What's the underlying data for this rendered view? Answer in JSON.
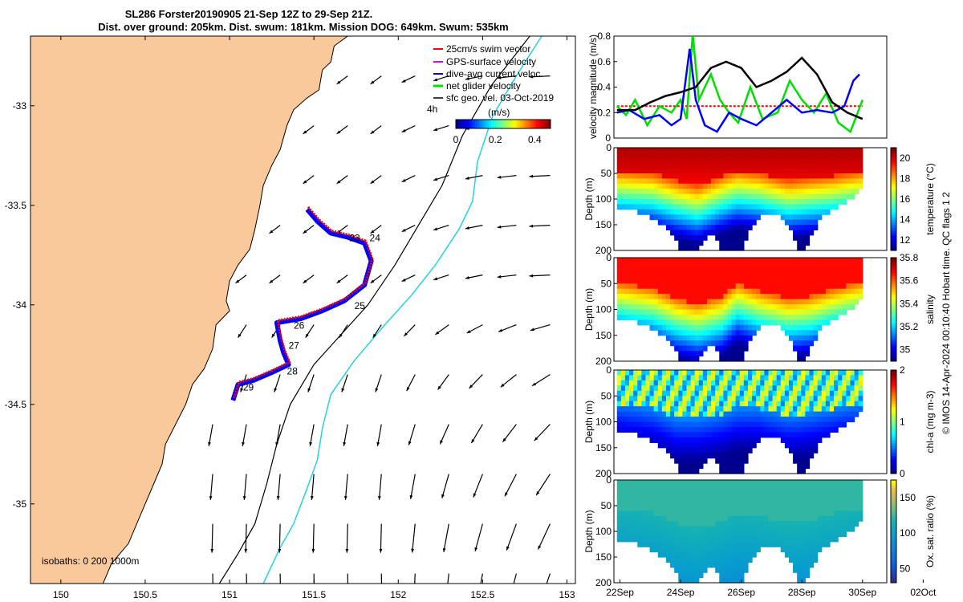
{
  "header": {
    "title_line1": "SL286 Forster20190905 21-Sep 12Z to 29-Sep 21Z.",
    "title_line2": "Dist. over ground: 205km. Dist. swum: 181km. Mission DOG: 649km. Swum: 535km"
  },
  "colors": {
    "land": "#f9c99c",
    "isobath_200": "#000000",
    "isobath_1000": "#22d3e0",
    "track_red": "#ff0000",
    "track_blue": "#0000ff",
    "green": "#00e000",
    "magenta": "#e000e0",
    "axis": "#000000"
  },
  "footer_note": "© IMOS 14-Apr-2024 00:10:40 Hobart time. QC flags 1  2",
  "chart_data": [
    {
      "type": "map",
      "x_ticks": [
        "150",
        "150.5",
        "151",
        "151.5",
        "152",
        "152.5",
        "153"
      ],
      "x_tick_values": [
        150,
        150.5,
        151,
        151.5,
        152,
        152.5,
        153
      ],
      "y_ticks": [
        "-33",
        "-33.5",
        "-34",
        "-34.5",
        "-35"
      ],
      "y_tick_values": [
        -33,
        -33.5,
        -34,
        -34.5,
        -35
      ],
      "xlim": [
        149.82,
        153.05
      ],
      "ylim": [
        -35.4,
        -32.65
      ],
      "legend": [
        {
          "label": "25cm/s swim vector",
          "color": "#ff0000"
        },
        {
          "label": "GPS-surface velocity",
          "color": "#e000e0"
        },
        {
          "label": "dive-avg current veloc.",
          "color": "#0000ff"
        },
        {
          "label": "net glider velocity",
          "color": "#00e000"
        },
        {
          "label": "sfc geo. vel. 03-Oct-2019",
          "color": "#000000"
        }
      ],
      "legend_extra": "4h",
      "colorbar": {
        "label": "(m/s)",
        "ticks": [
          "0",
          "0.2",
          "0.4"
        ],
        "tick_values": [
          0,
          0.2,
          0.4
        ],
        "range": [
          0,
          0.48
        ]
      },
      "isobath_note": "isobaths: 0   200  1000m",
      "date_labels": [
        {
          "label": "23",
          "lon": 151.71,
          "lat": -33.68
        },
        {
          "label": "24",
          "lon": 151.83,
          "lat": -33.68
        },
        {
          "label": "25",
          "lon": 151.74,
          "lat": -34.02
        },
        {
          "label": "26",
          "lon": 151.38,
          "lat": -34.12
        },
        {
          "label": "27",
          "lon": 151.35,
          "lat": -34.22
        },
        {
          "label": "28",
          "lon": 151.34,
          "lat": -34.35
        },
        {
          "label": "29",
          "lon": 151.08,
          "lat": -34.43
        }
      ],
      "track": [
        [
          151.46,
          -33.52
        ],
        [
          151.52,
          -33.58
        ],
        [
          151.6,
          -33.64
        ],
        [
          151.7,
          -33.66
        ],
        [
          151.8,
          -33.69
        ],
        [
          151.84,
          -33.78
        ],
        [
          151.8,
          -33.9
        ],
        [
          151.68,
          -33.98
        ],
        [
          151.55,
          -34.03
        ],
        [
          151.42,
          -34.07
        ],
        [
          151.28,
          -34.09
        ],
        [
          151.3,
          -34.18
        ],
        [
          151.32,
          -34.24
        ],
        [
          151.35,
          -34.3
        ],
        [
          151.25,
          -34.34
        ],
        [
          151.14,
          -34.38
        ],
        [
          151.05,
          -34.4
        ],
        [
          151.02,
          -34.48
        ]
      ],
      "coast": [
        [
          151.7,
          -32.65
        ],
        [
          151.62,
          -32.7
        ],
        [
          151.6,
          -32.78
        ],
        [
          151.55,
          -32.82
        ],
        [
          151.53,
          -32.92
        ],
        [
          151.46,
          -32.96
        ],
        [
          151.38,
          -33.02
        ],
        [
          151.34,
          -33.1
        ],
        [
          151.3,
          -33.22
        ],
        [
          151.25,
          -33.3
        ],
        [
          151.2,
          -33.4
        ],
        [
          151.18,
          -33.5
        ],
        [
          151.15,
          -33.62
        ],
        [
          151.12,
          -33.72
        ],
        [
          151.05,
          -33.8
        ],
        [
          151.0,
          -33.88
        ],
        [
          150.98,
          -33.98
        ],
        [
          151.0,
          -34.03
        ],
        [
          150.92,
          -34.1
        ],
        [
          150.9,
          -34.22
        ],
        [
          150.85,
          -34.32
        ],
        [
          150.78,
          -34.4
        ],
        [
          150.74,
          -34.5
        ],
        [
          150.68,
          -34.6
        ],
        [
          150.62,
          -34.7
        ],
        [
          150.6,
          -34.8
        ],
        [
          150.55,
          -34.9
        ],
        [
          150.5,
          -35.0
        ],
        [
          150.45,
          -35.1
        ],
        [
          150.4,
          -35.2
        ],
        [
          150.3,
          -35.3
        ],
        [
          150.25,
          -35.4
        ]
      ],
      "isobath200": [
        [
          152.78,
          -32.65
        ],
        [
          152.55,
          -32.9
        ],
        [
          152.38,
          -33.15
        ],
        [
          152.26,
          -33.4
        ],
        [
          152.12,
          -33.6
        ],
        [
          151.98,
          -33.8
        ],
        [
          151.82,
          -34.0
        ],
        [
          151.66,
          -34.15
        ],
        [
          151.5,
          -34.3
        ],
        [
          151.36,
          -34.5
        ],
        [
          151.28,
          -34.7
        ],
        [
          151.22,
          -34.9
        ],
        [
          151.15,
          -35.1
        ],
        [
          151.05,
          -35.25
        ],
        [
          150.94,
          -35.4
        ]
      ],
      "isobath1000": [
        [
          152.85,
          -32.65
        ],
        [
          152.7,
          -32.85
        ],
        [
          152.56,
          -33.05
        ],
        [
          152.47,
          -33.28
        ],
        [
          152.44,
          -33.48
        ],
        [
          152.36,
          -33.62
        ],
        [
          152.22,
          -33.8
        ],
        [
          152.08,
          -33.95
        ],
        [
          151.92,
          -34.1
        ],
        [
          151.74,
          -34.28
        ],
        [
          151.6,
          -34.45
        ],
        [
          151.55,
          -34.62
        ],
        [
          151.52,
          -34.78
        ],
        [
          151.46,
          -34.92
        ],
        [
          151.38,
          -35.1
        ],
        [
          151.3,
          -35.22
        ],
        [
          151.2,
          -35.4
        ]
      ]
    },
    {
      "type": "line",
      "ylabel": "velocity magnitude (m/s)",
      "y_ticks": [
        "0",
        "0.2",
        "0.4",
        "0.6",
        "0.8"
      ],
      "y_tick_values": [
        0,
        0.2,
        0.4,
        0.6,
        0.8
      ],
      "ylim": [
        0,
        0.8
      ],
      "xlim": [
        21.8,
        30.8
      ],
      "series": [
        {
          "color": "#ff0000",
          "values": [
            [
              21.9,
              0.25
            ],
            [
              30.0,
              0.25
            ]
          ]
        },
        {
          "color": "#00e000",
          "values": [
            [
              21.9,
              0.25
            ],
            [
              22.2,
              0.18
            ],
            [
              22.5,
              0.3
            ],
            [
              22.9,
              0.1
            ],
            [
              23.3,
              0.25
            ],
            [
              23.7,
              0.2
            ],
            [
              24.0,
              0.3
            ],
            [
              24.2,
              0.15
            ],
            [
              24.4,
              0.82
            ],
            [
              24.6,
              0.3
            ],
            [
              25.0,
              0.5
            ],
            [
              25.3,
              0.3
            ],
            [
              25.6,
              0.2
            ],
            [
              25.9,
              0.12
            ],
            [
              26.3,
              0.4
            ],
            [
              26.7,
              0.15
            ],
            [
              27.2,
              0.2
            ],
            [
              27.6,
              0.45
            ],
            [
              28.0,
              0.3
            ],
            [
              28.4,
              0.2
            ],
            [
              28.8,
              0.35
            ],
            [
              29.2,
              0.12
            ],
            [
              29.6,
              0.05
            ],
            [
              30.0,
              0.3
            ]
          ]
        },
        {
          "color": "#0000ff",
          "values": [
            [
              21.9,
              0.2
            ],
            [
              22.3,
              0.22
            ],
            [
              22.8,
              0.15
            ],
            [
              23.3,
              0.18
            ],
            [
              23.7,
              0.1
            ],
            [
              24.0,
              0.15
            ],
            [
              24.3,
              0.7
            ],
            [
              24.5,
              0.3
            ],
            [
              24.8,
              0.1
            ],
            [
              25.2,
              0.05
            ],
            [
              25.6,
              0.2
            ],
            [
              26.0,
              0.15
            ],
            [
              26.5,
              0.1
            ],
            [
              27.0,
              0.2
            ],
            [
              27.5,
              0.3
            ],
            [
              28.0,
              0.2
            ],
            [
              28.5,
              0.22
            ],
            [
              29.0,
              0.2
            ],
            [
              29.4,
              0.25
            ],
            [
              29.7,
              0.45
            ],
            [
              29.9,
              0.5
            ]
          ]
        },
        {
          "color": "#000000",
          "values": [
            [
              21.9,
              0.22
            ],
            [
              22.5,
              0.22
            ],
            [
              23.0,
              0.28
            ],
            [
              23.5,
              0.33
            ],
            [
              24.0,
              0.36
            ],
            [
              24.5,
              0.4
            ],
            [
              25.0,
              0.55
            ],
            [
              25.5,
              0.6
            ],
            [
              26.0,
              0.55
            ],
            [
              26.5,
              0.4
            ],
            [
              27.0,
              0.45
            ],
            [
              27.5,
              0.52
            ],
            [
              28.0,
              0.63
            ],
            [
              28.5,
              0.5
            ],
            [
              29.0,
              0.28
            ],
            [
              29.5,
              0.2
            ],
            [
              30.0,
              0.15
            ]
          ]
        }
      ]
    },
    {
      "type": "heatmap",
      "variable": "temperature",
      "colorbar_label": "temperature (°C)",
      "colorbar_ticks": [
        "12",
        "14",
        "16",
        "18",
        "20"
      ],
      "colorbar_tick_values": [
        12,
        14,
        16,
        18,
        20
      ],
      "crange": [
        11,
        21
      ],
      "ylabel": "Depth (m)",
      "y_ticks": [
        "0",
        "50",
        "100",
        "150",
        "200"
      ],
      "y_tick_values": [
        0,
        50,
        100,
        150,
        200
      ],
      "ylim": [
        0,
        200
      ],
      "xlim": [
        21.8,
        30.8
      ],
      "surface": 20.5,
      "mixed_depth": [
        [
          21.9,
          40
        ],
        [
          23.0,
          45
        ],
        [
          23.8,
          60
        ],
        [
          24.5,
          70
        ],
        [
          25.3,
          50
        ],
        [
          25.8,
          40
        ],
        [
          26.5,
          45
        ],
        [
          27.5,
          60
        ],
        [
          28.2,
          55
        ],
        [
          29.0,
          50
        ],
        [
          30.0,
          40
        ]
      ]
    },
    {
      "type": "heatmap",
      "variable": "salinity",
      "colorbar_label": "salinity",
      "colorbar_ticks": [
        "35",
        "35.2",
        "35.4",
        "35.6",
        "35.8"
      ],
      "colorbar_tick_values": [
        35,
        35.2,
        35.4,
        35.6,
        35.8
      ],
      "crange": [
        34.9,
        35.8
      ],
      "ylabel": "Depth (m)",
      "y_ticks": [
        "0",
        "50",
        "100",
        "150",
        "200"
      ],
      "y_tick_values": [
        0,
        50,
        100,
        150,
        200
      ],
      "ylim": [
        0,
        200
      ],
      "xlim": [
        21.8,
        30.8
      ],
      "surface": 35.6,
      "mixed_depth": [
        [
          21.9,
          45
        ],
        [
          23.0,
          55
        ],
        [
          23.8,
          75
        ],
        [
          24.5,
          85
        ],
        [
          25.3,
          70
        ],
        [
          25.8,
          45
        ],
        [
          26.5,
          60
        ],
        [
          27.5,
          75
        ],
        [
          28.2,
          70
        ],
        [
          29.0,
          55
        ],
        [
          30.0,
          40
        ]
      ]
    },
    {
      "type": "heatmap",
      "variable": "chl-a",
      "colorbar_label": "chl-a (mg m-3)",
      "colorbar_ticks": [
        "0",
        "1",
        "2"
      ],
      "colorbar_tick_values": [
        0,
        1,
        2
      ],
      "crange": [
        0,
        2
      ],
      "ylabel": "Depth (m)",
      "y_ticks": [
        "0",
        "50",
        "100",
        "150",
        "200"
      ],
      "y_tick_values": [
        0,
        50,
        100,
        150,
        200
      ],
      "ylim": [
        0,
        200
      ],
      "xlim": [
        21.8,
        30.8
      ],
      "surface": 0.9,
      "mixed_depth": [
        [
          21.9,
          60
        ],
        [
          23.0,
          70
        ],
        [
          23.8,
          90
        ],
        [
          24.5,
          90
        ],
        [
          25.3,
          80
        ],
        [
          25.8,
          70
        ],
        [
          26.5,
          70
        ],
        [
          27.5,
          85
        ],
        [
          28.2,
          80
        ],
        [
          29.0,
          70
        ],
        [
          30.0,
          60
        ]
      ]
    },
    {
      "type": "heatmap",
      "variable": "oxygen",
      "colorbar_label": "Ox. sat. ratio (%)",
      "colorbar_ticks": [
        "50",
        "100",
        "150"
      ],
      "colorbar_tick_values": [
        50,
        100,
        150
      ],
      "crange": [
        30,
        175
      ],
      "ylabel": "Depth (m)",
      "y_ticks": [
        "0",
        "50",
        "100",
        "150",
        "200"
      ],
      "y_tick_values": [
        0,
        50,
        100,
        150,
        200
      ],
      "ylim": [
        0,
        200
      ],
      "xlim": [
        21.8,
        30.8
      ],
      "surface": 118,
      "mixed_depth": [
        [
          21.9,
          50
        ],
        [
          23.0,
          60
        ],
        [
          23.8,
          80
        ],
        [
          24.5,
          90
        ],
        [
          25.3,
          75
        ],
        [
          25.8,
          60
        ],
        [
          26.5,
          65
        ],
        [
          27.5,
          80
        ],
        [
          28.2,
          75
        ],
        [
          29.0,
          60
        ],
        [
          30.0,
          50
        ]
      ],
      "x_ticks": [
        "22Sep",
        "24Sep",
        "26Sep",
        "28Sep",
        "30Sep",
        "02Oct"
      ],
      "x_tick_values": [
        22,
        24,
        26,
        28,
        30,
        32
      ]
    }
  ],
  "profile_shape": {
    "xlim": [
      21.8,
      30.8
    ],
    "bottom_depth": [
      [
        21.9,
        120
      ],
      [
        22.4,
        118
      ],
      [
        22.9,
        130
      ],
      [
        23.4,
        150
      ],
      [
        23.8,
        180
      ],
      [
        24.0,
        200
      ],
      [
        24.4,
        200
      ],
      [
        24.7,
        175
      ],
      [
        25.0,
        160
      ],
      [
        25.3,
        200
      ],
      [
        25.9,
        200
      ],
      [
        26.2,
        160
      ],
      [
        26.6,
        130
      ],
      [
        27.0,
        120
      ],
      [
        27.5,
        150
      ],
      [
        27.8,
        190
      ],
      [
        28.0,
        200
      ],
      [
        28.2,
        175
      ],
      [
        28.6,
        130
      ],
      [
        29.0,
        115
      ],
      [
        29.4,
        100
      ],
      [
        29.8,
        80
      ],
      [
        30.0,
        70
      ]
    ]
  }
}
